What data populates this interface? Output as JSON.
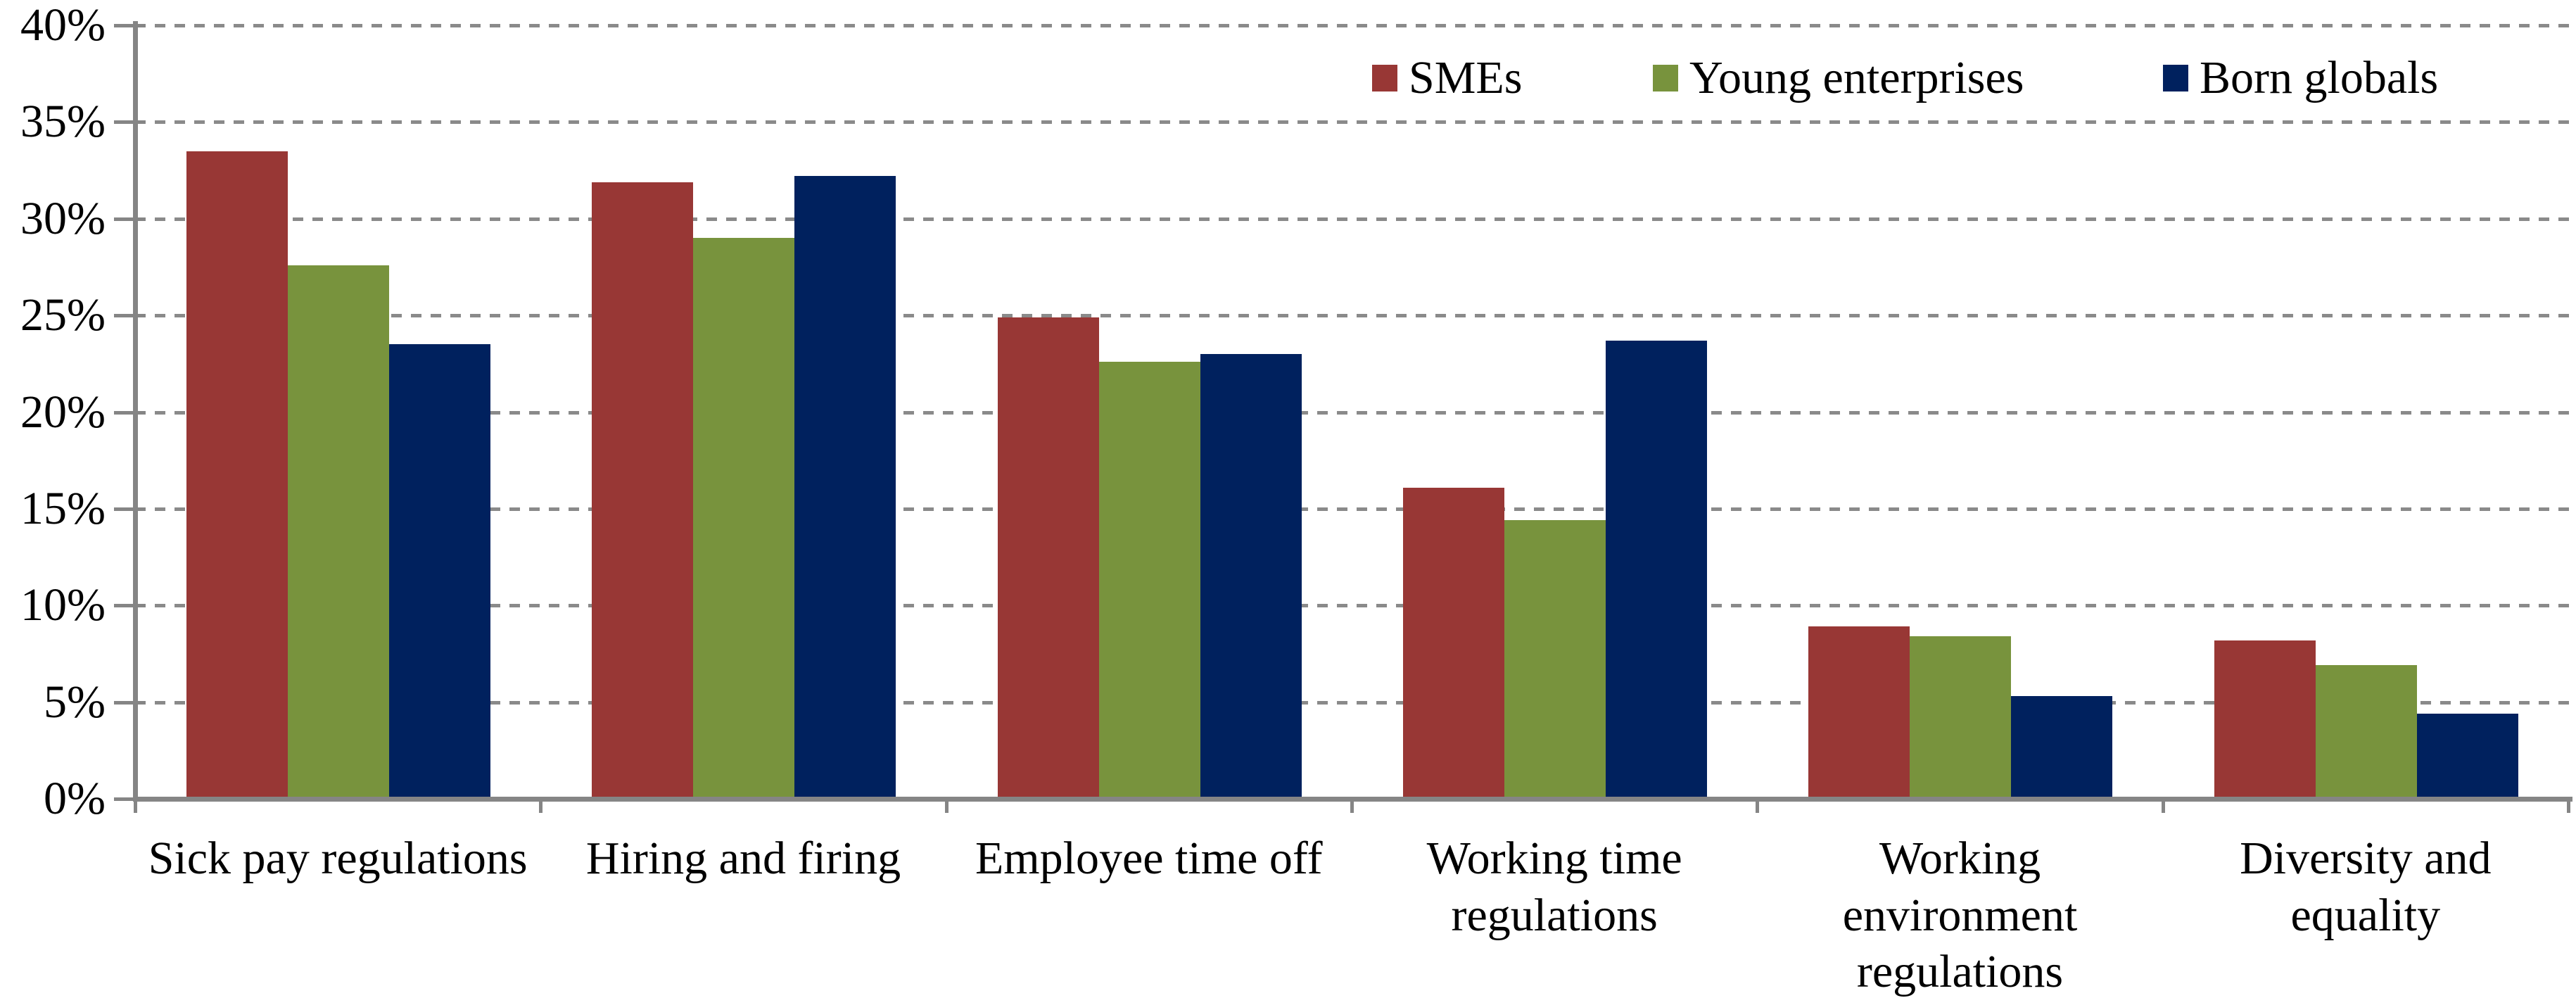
{
  "chart_data": {
    "type": "bar",
    "title": "",
    "xlabel": "",
    "ylabel": "",
    "categories": [
      "Sick pay regulations",
      "Hiring and firing",
      "Employee time off",
      "Working time\nregulations",
      "Working\nenvironment\nregulations",
      "Diversity and\nequality"
    ],
    "series": [
      {
        "name": "SMEs",
        "color": "#983735",
        "values": [
          33.5,
          31.9,
          24.9,
          16.1,
          8.9,
          8.2
        ]
      },
      {
        "name": "Young enterprises",
        "color": "#78933d",
        "values": [
          27.6,
          29.0,
          22.6,
          14.4,
          8.4,
          6.9
        ]
      },
      {
        "name": "Born globals",
        "color": "#00215e",
        "values": [
          23.5,
          32.2,
          23.0,
          23.7,
          5.3,
          4.4
        ]
      }
    ],
    "ylim": [
      0,
      40
    ],
    "y_tick_interval": 5,
    "y_tick_labels": [
      "40%",
      "35%",
      "30%",
      "25%",
      "20%",
      "15%",
      "10%",
      "5%",
      "0%"
    ],
    "grid": "horizontal-dashed",
    "legend_position": "top-right",
    "legend_entry_x": [
      1950,
      2349,
      3074
    ]
  },
  "colors": {
    "bar_red": "#983735",
    "bar_green": "#78933d",
    "bar_navy": "#00215e",
    "axis_gray": "#858585",
    "gridline_gray": "#8a8a8a",
    "text": "#000000",
    "background": "#ffffff"
  }
}
